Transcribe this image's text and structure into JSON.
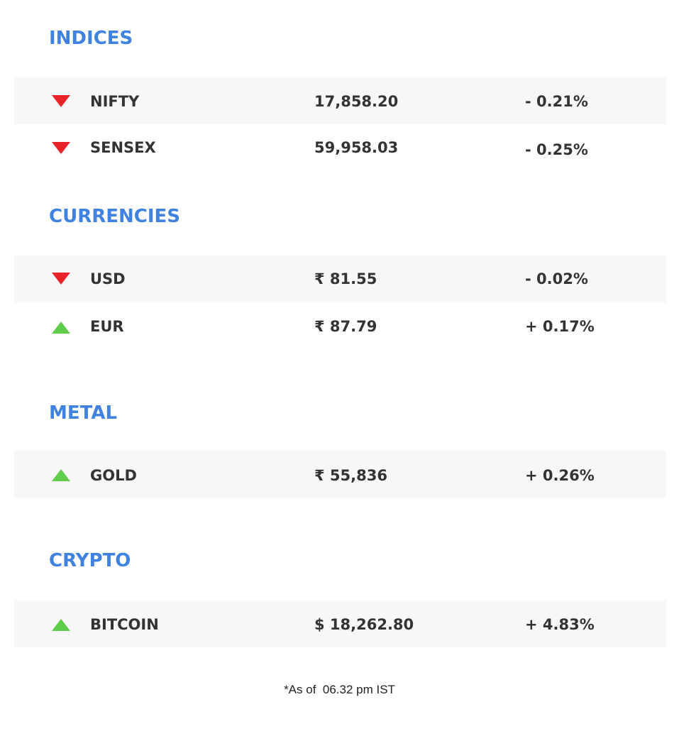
{
  "sections": [
    {
      "title": "INDICES",
      "rows": [
        {
          "name": "NIFTY",
          "value": "17,858.20",
          "change": "- 0.21%",
          "direction": "down-arrow-icon"
        },
        {
          "name": "SENSEX",
          "value": "59,958.03",
          "change": "- 0.25%",
          "direction": "down-arrow-icon"
        }
      ]
    },
    {
      "title": "CURRENCIES",
      "rows": [
        {
          "name": "USD",
          "value": "₹ 81.55",
          "change": "- 0.02%",
          "direction": "down-arrow-icon"
        },
        {
          "name": "EUR",
          "value": "₹ 87.79",
          "change": "+ 0.17%",
          "direction": "up-arrow-icon"
        }
      ]
    },
    {
      "title": "METAL",
      "rows": [
        {
          "name": "GOLD",
          "value": "₹ 55,836",
          "change": "+ 0.26%",
          "direction": "up-arrow-icon"
        }
      ]
    },
    {
      "title": "CRYPTO",
      "rows": [
        {
          "name": "BITCOIN",
          "value": "$ 18,262.80",
          "change": "+ 4.83%",
          "direction": "up-arrow-icon"
        }
      ]
    }
  ],
  "footnote": "*As of  06.32 pm IST",
  "colors": {
    "section_title": "#3f82e0",
    "down": "#e8232a",
    "up": "#5fcd4a",
    "row_shade": "#f7f7f7",
    "text": "#333333"
  }
}
